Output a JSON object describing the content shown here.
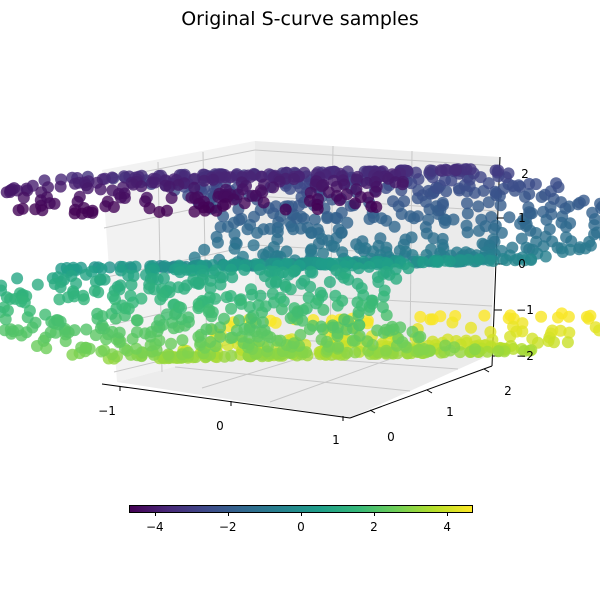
{
  "title": "Original S-curve samples",
  "chart_data": {
    "type": "scatter",
    "subtype": "3d",
    "title": "Original S-curve samples",
    "n_points": 1500,
    "colormap": "viridis",
    "color_variable": "t (position along S-curve)",
    "x_ticks": [
      "−1",
      "0",
      "1"
    ],
    "y_ticks": [
      "0",
      "1",
      "2"
    ],
    "z_ticks": [
      "−2",
      "−1",
      "0",
      "1",
      "2"
    ],
    "xlim": [
      -1,
      1
    ],
    "ylim": [
      0,
      2
    ],
    "zlim": [
      -2,
      2
    ],
    "colorbar": {
      "orientation": "horizontal",
      "ticks": [
        "−4",
        "−2",
        "0",
        "2",
        "4"
      ],
      "range": [
        -4.71,
        4.71
      ]
    },
    "view": {
      "elev": 10,
      "azim": -60
    },
    "description": "S-shaped 3D manifold: purple upper arc on the right, teal middle band, yellow lower arc on the left"
  },
  "colorbar": {
    "ticks": [
      {
        "label": "−4",
        "pos": 0.075
      },
      {
        "label": "−2",
        "pos": 0.287
      },
      {
        "label": "0",
        "pos": 0.5
      },
      {
        "label": "2",
        "pos": 0.712
      },
      {
        "label": "4",
        "pos": 0.925
      }
    ]
  },
  "axes": {
    "x_ticks": [
      {
        "label": "−1",
        "x": 107,
        "y": 411
      },
      {
        "label": "0",
        "x": 220,
        "y": 426
      },
      {
        "label": "1",
        "x": 336,
        "y": 440
      }
    ],
    "y_ticks": [
      {
        "label": "0",
        "x": 391,
        "y": 437
      },
      {
        "label": "1",
        "x": 450,
        "y": 412
      },
      {
        "label": "2",
        "x": 508,
        "y": 391
      }
    ],
    "z_ticks": [
      {
        "label": "2",
        "x": 525,
        "y": 174
      },
      {
        "label": "1",
        "x": 522,
        "y": 218
      },
      {
        "label": "0",
        "x": 522,
        "y": 264
      },
      {
        "label": "−1",
        "x": 525,
        "y": 310
      },
      {
        "label": "−2",
        "x": 525,
        "y": 356
      }
    ]
  }
}
